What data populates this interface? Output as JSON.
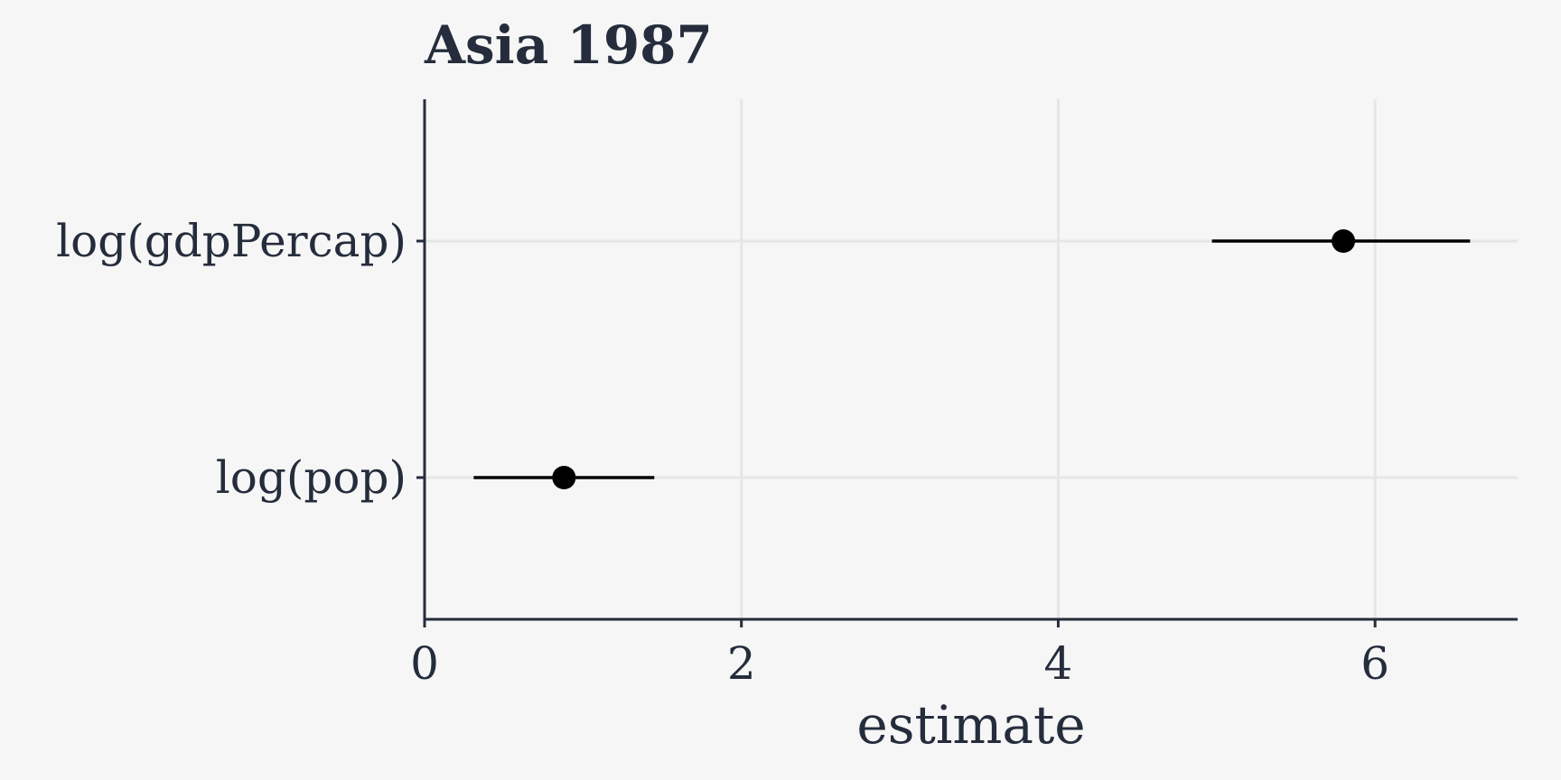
{
  "chart_data": {
    "type": "scatter",
    "title": "Asia 1987",
    "xlabel": "estimate",
    "ylabel": "",
    "xlim": [
      0,
      6.9
    ],
    "x_ticks": [
      0,
      2,
      4,
      6
    ],
    "x_tick_labels": [
      "0",
      "2",
      "4",
      "6"
    ],
    "categories": [
      "log(gdpPercap)",
      "log(pop)"
    ],
    "points": [
      {
        "term": "log(gdpPercap)",
        "estimate": 5.8,
        "conf_low": 4.97,
        "conf_high": 6.6
      },
      {
        "term": "log(pop)",
        "estimate": 0.88,
        "conf_low": 0.31,
        "conf_high": 1.45
      }
    ],
    "grid": true,
    "colors": {
      "background": "#f6f6f6",
      "grid": "#e6e6e6",
      "axis": "#252d3c",
      "text": "#252d3c",
      "marker": "#000000"
    }
  }
}
